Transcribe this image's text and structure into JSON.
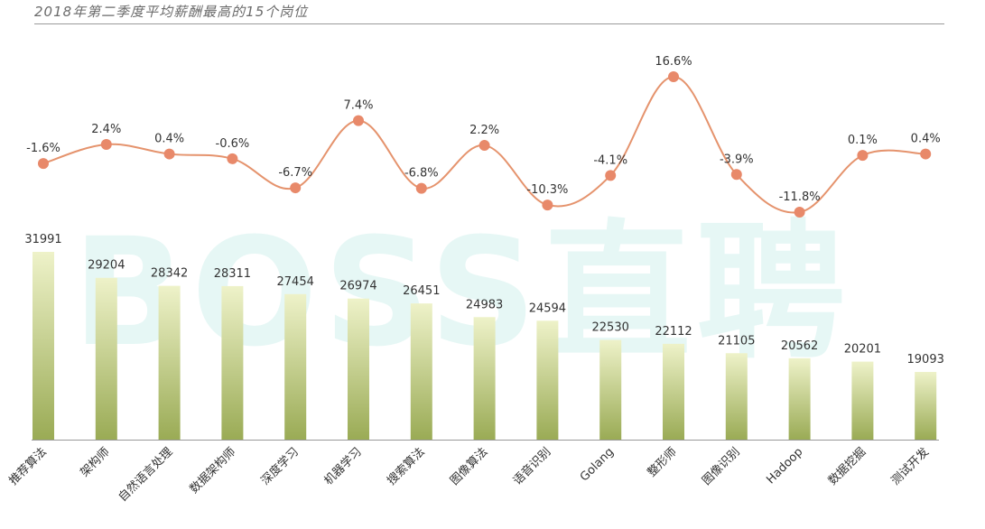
{
  "title": "2018年第二季度平均薪酬最高的15个岗位",
  "watermark": "BOSS直聘",
  "colors": {
    "bar_top": "#eef2c9",
    "bar_bottom": "#9aab55",
    "line": "#e5936d",
    "marker": "#e8896a",
    "text": "#333333",
    "axis": "#999999"
  },
  "chart_data": {
    "type": "bar",
    "title": "2018年第二季度平均薪酬最高的15个岗位",
    "categories": [
      "推荐算法",
      "架构师",
      "自然语言处理",
      "数据架构师",
      "深度学习",
      "机器学习",
      "搜索算法",
      "图像算法",
      "语音识别",
      "Golang",
      "整形师",
      "图像识别",
      "Hadoop",
      "数据挖掘",
      "测试开发"
    ],
    "series": [
      {
        "values": [
          31991,
          29204,
          28342,
          28311,
          27454,
          26974,
          26451,
          24983,
          24594,
          22530,
          22112,
          21105,
          20562,
          20201,
          19093
        ]
      },
      {
        "type": "line",
        "values": [
          -1.6,
          2.4,
          0.4,
          -0.6,
          -6.7,
          7.4,
          -6.8,
          2.2,
          -10.3,
          -4.1,
          16.6,
          -3.9,
          -11.8,
          0.1,
          0.4
        ],
        "labels": [
          "-1.6%",
          "2.4%",
          "0.4%",
          "-0.6%",
          "-6.7%",
          "7.4%",
          "-6.8%",
          "2.2%",
          "-10.3%",
          "-4.1%",
          "16.6%",
          "-3.9%",
          "-11.8%",
          "0.1%",
          "0.4%"
        ]
      }
    ],
    "ylim": [
      0,
      32000
    ],
    "y2lim": [
      -11.8,
      16.6
    ],
    "grid": false,
    "legend": "none"
  }
}
